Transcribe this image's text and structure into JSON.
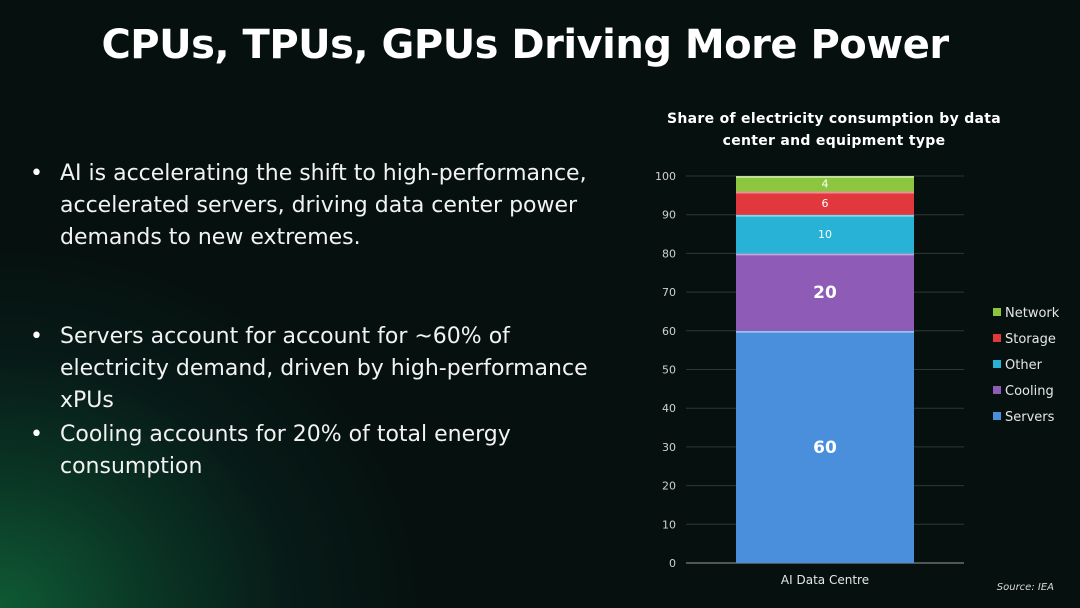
{
  "title": "CPUs, TPUs, GPUs Driving More Power",
  "bullets": [
    "AI is accelerating the shift to high-performance, accelerated servers, driving data center power demands to new extremes.",
    "Servers account for account for ~60% of electricity demand, driven by high-performance xPUs",
    "Cooling accounts for 20% of total energy consumption"
  ],
  "source": "Source: IEA",
  "chart_data": {
    "type": "bar",
    "stacked": true,
    "title": "Share of electricity consumption by data center and equipment type",
    "categories": [
      "AI Data Centre"
    ],
    "series": [
      {
        "name": "Servers",
        "values": [
          60
        ],
        "color": "#4a8fdc"
      },
      {
        "name": "Cooling",
        "values": [
          20
        ],
        "color": "#8e5bb6"
      },
      {
        "name": "Other",
        "values": [
          10
        ],
        "color": "#28b3d6"
      },
      {
        "name": "Storage",
        "values": [
          6
        ],
        "color": "#e0383c"
      },
      {
        "name": "Network",
        "values": [
          4
        ],
        "color": "#8cc63e"
      }
    ],
    "ylim": [
      0,
      100
    ],
    "yticks": [
      0,
      10,
      20,
      30,
      40,
      50,
      60,
      70,
      80,
      90,
      100
    ],
    "grid": true,
    "legend_position": "right"
  }
}
